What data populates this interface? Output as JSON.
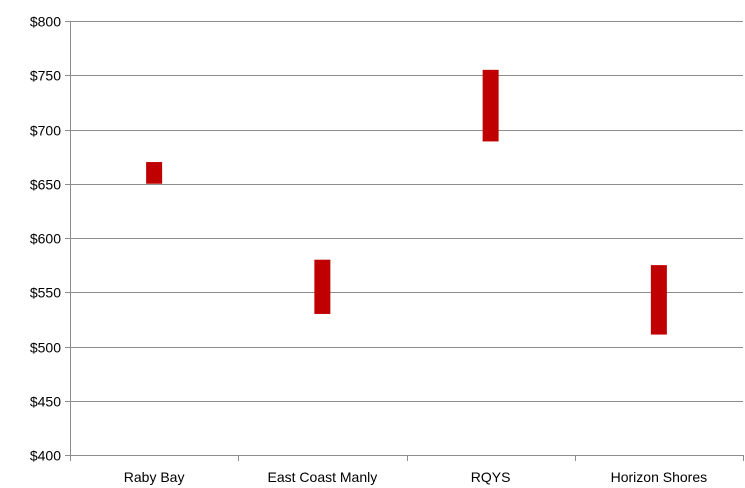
{
  "chart_data": {
    "type": "bar",
    "subtype": "floating-range",
    "title": "",
    "xlabel": "",
    "ylabel": "",
    "categories": [
      "Raby Bay",
      "East Coast Manly",
      "RQYS",
      "Horizon Shores"
    ],
    "series": [
      {
        "low": [
          650,
          530,
          689,
          511
        ],
        "high": [
          670,
          580,
          755,
          575
        ],
        "color": "#c00000"
      }
    ],
    "ylim": [
      400,
      800
    ],
    "yticks": [
      400,
      450,
      500,
      550,
      600,
      650,
      700,
      750,
      800
    ],
    "ytick_labels": [
      "$400",
      "$450",
      "$500",
      "$550",
      "$600",
      "$650",
      "$700",
      "$750",
      "$800"
    ],
    "grid": true,
    "legend": "none"
  }
}
